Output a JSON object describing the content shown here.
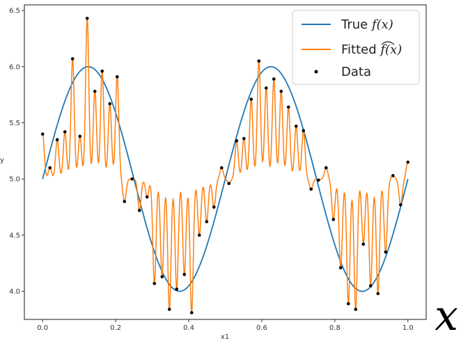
{
  "chart_data": {
    "type": "line",
    "xlabel": "x1",
    "ylabel": "y",
    "xlim": [
      -0.05,
      1.05
    ],
    "ylim": [
      3.75,
      6.55
    ],
    "xticks": [
      0.0,
      0.2,
      0.4,
      0.6,
      0.8,
      1.0
    ],
    "xtick_labels": [
      "0.0",
      "0.2",
      "0.4",
      "0.6",
      "0.8",
      "1.0"
    ],
    "yticks": [
      4.0,
      4.5,
      5.0,
      5.5,
      6.0,
      6.5
    ],
    "ytick_labels": [
      "4.0",
      "4.5",
      "5.0",
      "5.5",
      "6.0",
      "6.5"
    ],
    "grid": false,
    "legend_position": "top-right",
    "true_function": {
      "baseline": 5.0,
      "amplitude": 1.0,
      "period": 0.5
    },
    "series": [
      {
        "name": "True f(x)",
        "kind": "line",
        "color": "#1f77b4"
      },
      {
        "name": "Fitted f(x)",
        "kind": "line",
        "color": "#ff7f0e"
      },
      {
        "name": "Data",
        "kind": "scatter",
        "color": "#000000",
        "x": [
          0.0,
          0.02,
          0.04,
          0.061,
          0.082,
          0.102,
          0.122,
          0.143,
          0.163,
          0.184,
          0.204,
          0.224,
          0.245,
          0.265,
          0.286,
          0.306,
          0.327,
          0.347,
          0.367,
          0.388,
          0.408,
          0.429,
          0.449,
          0.469,
          0.49,
          0.51,
          0.531,
          0.551,
          0.571,
          0.592,
          0.612,
          0.633,
          0.653,
          0.673,
          0.694,
          0.714,
          0.735,
          0.755,
          0.776,
          0.796,
          0.816,
          0.837,
          0.857,
          0.878,
          0.898,
          0.918,
          0.939,
          0.959,
          0.98,
          1.0
        ],
        "y": [
          5.4,
          5.1,
          5.35,
          5.42,
          6.07,
          5.38,
          6.43,
          5.78,
          5.96,
          5.67,
          5.91,
          4.8,
          5.0,
          4.72,
          4.84,
          4.07,
          4.13,
          3.84,
          4.02,
          4.15,
          3.81,
          4.5,
          4.62,
          4.75,
          5.1,
          4.96,
          5.34,
          5.36,
          5.71,
          6.05,
          5.81,
          5.89,
          5.78,
          5.64,
          5.47,
          5.43,
          4.91,
          4.99,
          5.1,
          4.64,
          4.21,
          3.89,
          3.84,
          4.42,
          4.05,
          3.98,
          4.35,
          5.03,
          4.77,
          5.15
        ]
      }
    ]
  },
  "legend": {
    "items": [
      {
        "prefix": "True ",
        "math": "f(x)",
        "color": "#1f77b4",
        "marker": "line"
      },
      {
        "prefix": "Fitted ",
        "math": "f(x)",
        "color": "#ff7f0e",
        "marker": "line"
      },
      {
        "prefix": "Data",
        "math": "",
        "color": "#000000",
        "marker": "dot"
      }
    ]
  },
  "corner_glyph": "x"
}
